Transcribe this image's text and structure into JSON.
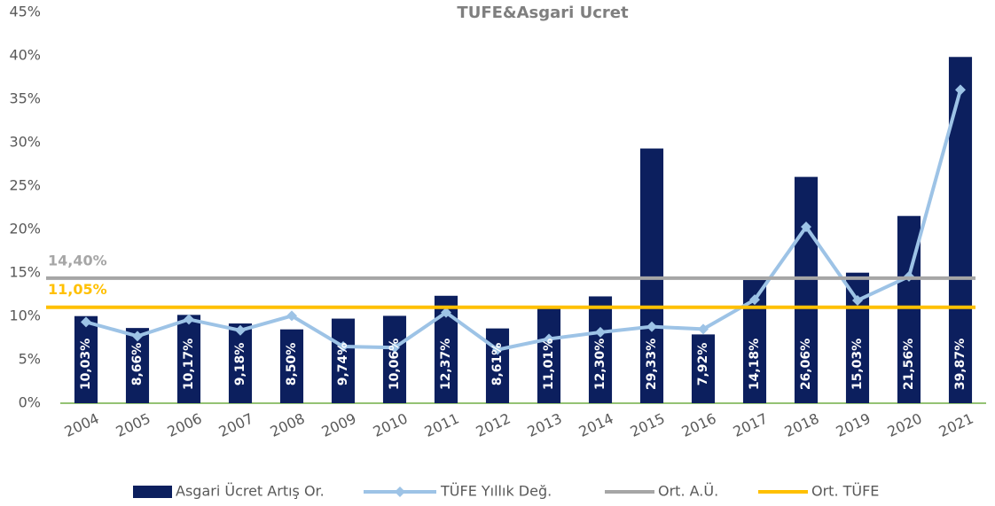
{
  "chart_data": {
    "type": "bar",
    "title": "TUFE&Asgari Ucret",
    "categories": [
      "2004",
      "2005",
      "2006",
      "2007",
      "2008",
      "2009",
      "2010",
      "2011",
      "2012",
      "2013",
      "2014",
      "2015",
      "2016",
      "2017",
      "2018",
      "2019",
      "2020",
      "2021"
    ],
    "series": [
      {
        "name": "Asgari Ücret Artış Or.",
        "type": "bar",
        "color": "#0c1f5e",
        "values": [
          10.03,
          8.66,
          10.17,
          9.18,
          8.5,
          9.74,
          10.06,
          12.37,
          8.61,
          11.01,
          12.3,
          29.33,
          7.92,
          14.18,
          26.06,
          15.03,
          21.56,
          39.87
        ],
        "value_labels": [
          "10,03%",
          "8,66%",
          "10,17%",
          "9,18%",
          "8,50%",
          "9,74%",
          "10,06%",
          "12,37%",
          "8,61%",
          "11,01%",
          "12,30%",
          "29,33%",
          "7,92%",
          "14,18%",
          "26,06%",
          "15,03%",
          "21,56%",
          "39,87%"
        ]
      },
      {
        "name": "TÜFE Yıllık Değ.",
        "type": "line",
        "color": "#9dc3e6",
        "values": [
          9.35,
          7.72,
          9.65,
          8.39,
          10.06,
          6.53,
          6.4,
          10.45,
          6.16,
          7.4,
          8.17,
          8.81,
          8.53,
          11.92,
          20.3,
          11.84,
          14.6,
          36.08
        ]
      },
      {
        "name": "Ort. A.Ü.",
        "type": "hline",
        "color": "#a6a6a6",
        "value": 14.4,
        "value_label": "14,40%"
      },
      {
        "name": "Ort. TÜFE",
        "type": "hline",
        "color": "#ffc000",
        "value": 11.05,
        "value_label": "11,05%"
      }
    ],
    "ylim": [
      0,
      45
    ],
    "yticks": [
      {
        "value": 0,
        "label": "0%"
      },
      {
        "value": 5,
        "label": "5%"
      },
      {
        "value": 10,
        "label": "10%"
      },
      {
        "value": 15,
        "label": "15%"
      },
      {
        "value": 20,
        "label": "20%"
      },
      {
        "value": 25,
        "label": "25%"
      },
      {
        "value": 30,
        "label": "30%"
      },
      {
        "value": 35,
        "label": "35%"
      },
      {
        "value": 40,
        "label": "40%"
      },
      {
        "value": 45,
        "label": "45%"
      }
    ],
    "grid": false
  }
}
